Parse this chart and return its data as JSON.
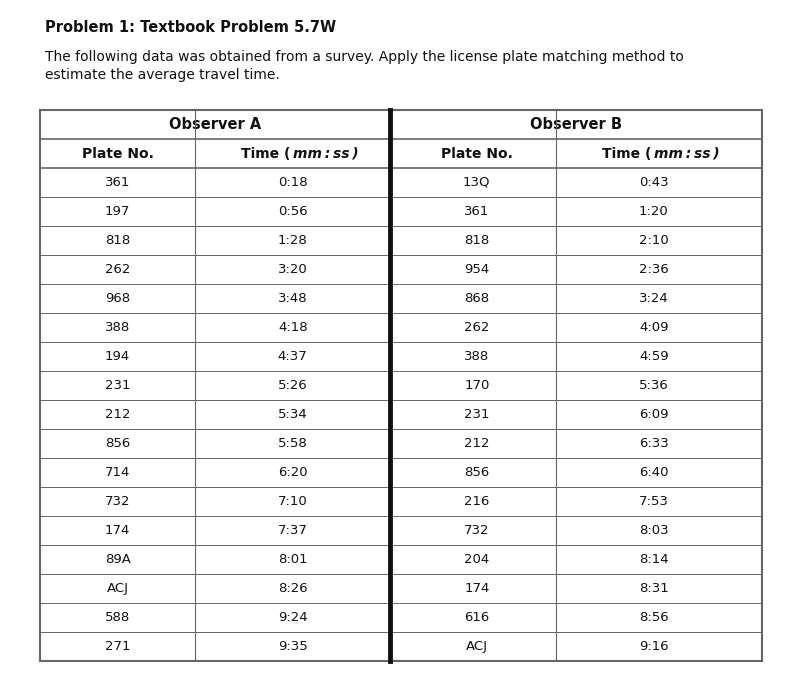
{
  "title": "Problem 1: Textbook Problem 5.7W",
  "subtitle_line1": "The following data was obtained from a survey. Apply the license plate matching method to",
  "subtitle_line2": "estimate the average travel time.",
  "observer_a_header": "Observer A",
  "observer_b_header": "Observer B",
  "observer_a": [
    [
      "361",
      "0:18"
    ],
    [
      "197",
      "0:56"
    ],
    [
      "818",
      "1:28"
    ],
    [
      "262",
      "3:20"
    ],
    [
      "968",
      "3:48"
    ],
    [
      "388",
      "4:18"
    ],
    [
      "194",
      "4:37"
    ],
    [
      "231",
      "5:26"
    ],
    [
      "212",
      "5:34"
    ],
    [
      "856",
      "5:58"
    ],
    [
      "714",
      "6:20"
    ],
    [
      "732",
      "7:10"
    ],
    [
      "174",
      "7:37"
    ],
    [
      "89A",
      "8:01"
    ],
    [
      "ACJ",
      "8:26"
    ],
    [
      "588",
      "9:24"
    ],
    [
      "271",
      "9:35"
    ]
  ],
  "observer_b": [
    [
      "13Q",
      "0:43"
    ],
    [
      "361",
      "1:20"
    ],
    [
      "818",
      "2:10"
    ],
    [
      "954",
      "2:36"
    ],
    [
      "868",
      "3:24"
    ],
    [
      "262",
      "4:09"
    ],
    [
      "388",
      "4:59"
    ],
    [
      "170",
      "5:36"
    ],
    [
      "231",
      "6:09"
    ],
    [
      "212",
      "6:33"
    ],
    [
      "856",
      "6:40"
    ],
    [
      "216",
      "7:53"
    ],
    [
      "732",
      "8:03"
    ],
    [
      "204",
      "8:14"
    ],
    [
      "174",
      "8:31"
    ],
    [
      "616",
      "8:56"
    ],
    [
      "ACJ",
      "9:16"
    ]
  ],
  "bg_color": "#ffffff",
  "table_bg": "#f0f0f0",
  "border_color": "#666666",
  "center_divider_color": "#111111",
  "text_color": "#111111",
  "title_fontsize": 10.5,
  "subtitle_fontsize": 10,
  "header_fontsize": 10,
  "cell_fontsize": 9.5
}
